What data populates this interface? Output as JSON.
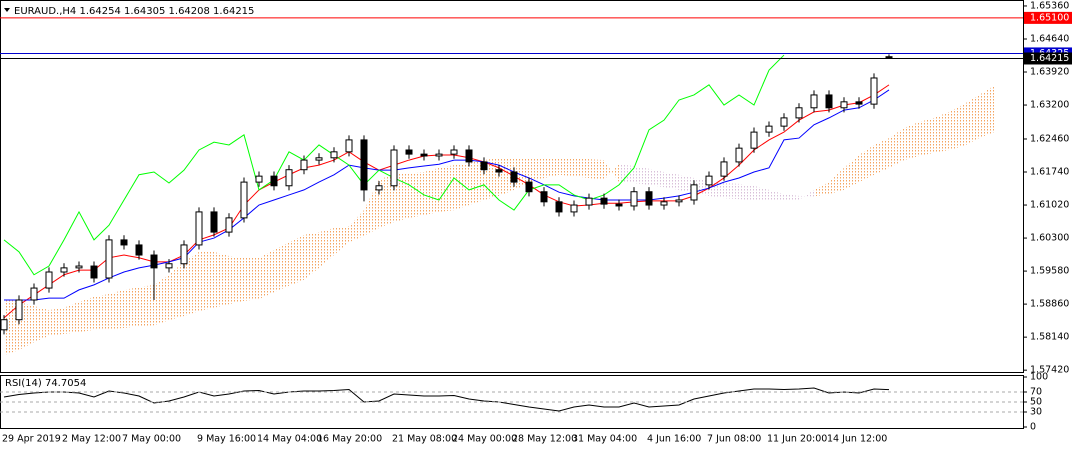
{
  "chart_data": [
    {
      "type": "candlestick",
      "title": "EURAUD.,H4  1.64254 1.64305 1.64208 1.64215",
      "categories": [
        "29 Apr 2019",
        null,
        null,
        null,
        "2 May 12:00",
        null,
        null,
        null,
        "7 May 00:00",
        null,
        null,
        null,
        null,
        "9 May 16:00",
        null,
        null,
        null,
        "14 May 04:00",
        null,
        null,
        null,
        "16 May 20:00",
        null,
        null,
        null,
        null,
        "21 May 08:00",
        null,
        null,
        null,
        "24 May 00:00",
        null,
        null,
        null,
        "28 May 12:00",
        null,
        null,
        null,
        "31 May 04:00",
        null,
        null,
        null,
        null,
        "4 Jun 16:00",
        null,
        null,
        null,
        "7 Jun 08:00",
        null,
        null,
        null,
        "11 Jun 20:00",
        null,
        null,
        null,
        "14 Jun 12:00",
        null,
        null,
        null,
        null,
        null,
        null,
        null,
        null,
        null,
        null,
        null
      ],
      "open": [
        1.583,
        1.5852,
        1.5895,
        1.5921,
        1.5956,
        1.5965,
        1.5969,
        1.5943,
        1.6026,
        1.6015,
        1.5993,
        1.5965,
        1.5974,
        1.6015,
        1.6087,
        1.6043,
        1.6074,
        1.6152,
        1.6165,
        1.6144,
        1.6179,
        1.62,
        1.6205,
        1.6218,
        1.6244,
        1.6135,
        1.6144,
        1.6222,
        1.6213,
        1.6209,
        1.6213,
        1.6222,
        1.6196,
        1.6179,
        1.6174,
        1.6152,
        1.6131,
        1.6109,
        1.6087,
        1.6102,
        1.6117,
        1.6104,
        1.61,
        1.6131,
        1.6102,
        1.6109,
        1.6113,
        1.6146,
        1.6165,
        1.6196,
        1.6226,
        1.6261,
        1.6274,
        1.6292,
        1.6314,
        1.6342,
        1.6314,
        1.6327,
        1.6322,
        1.64254,
        null,
        null,
        null,
        null,
        null,
        null,
        null
      ],
      "high": [
        1.5862,
        1.5905,
        1.5931,
        1.5966,
        1.5975,
        1.5979,
        1.5979,
        1.6036,
        1.6036,
        1.6025,
        1.6003,
        1.5984,
        1.6025,
        1.6097,
        1.6097,
        1.6084,
        1.6162,
        1.6175,
        1.6175,
        1.6189,
        1.621,
        1.6215,
        1.6228,
        1.6254,
        1.6254,
        1.6154,
        1.6232,
        1.6232,
        1.6223,
        1.6223,
        1.6232,
        1.6232,
        1.6206,
        1.6189,
        1.6184,
        1.6162,
        1.6141,
        1.6119,
        1.6112,
        1.6127,
        1.6127,
        1.6114,
        1.6141,
        1.6141,
        1.6119,
        1.6123,
        1.6156,
        1.6175,
        1.6206,
        1.6236,
        1.6271,
        1.6284,
        1.6302,
        1.6324,
        1.6352,
        1.6352,
        1.6337,
        1.6337,
        1.6389,
        1.64305,
        null,
        null,
        null,
        null,
        null,
        null,
        null
      ],
      "low": [
        1.582,
        1.5842,
        1.5885,
        1.5911,
        1.5946,
        1.5955,
        1.5933,
        1.5933,
        1.6005,
        1.5983,
        1.5895,
        1.5955,
        1.5964,
        1.6005,
        1.6033,
        1.6033,
        1.6064,
        1.6142,
        1.6134,
        1.6134,
        1.6169,
        1.619,
        1.6195,
        1.6208,
        1.611,
        1.6125,
        1.6134,
        1.6203,
        1.6199,
        1.6199,
        1.6203,
        1.6186,
        1.6169,
        1.6164,
        1.6142,
        1.6121,
        1.6099,
        1.6077,
        1.6077,
        1.6092,
        1.6094,
        1.609,
        1.609,
        1.6092,
        1.6092,
        1.6099,
        1.6103,
        1.6136,
        1.6155,
        1.6186,
        1.6216,
        1.6251,
        1.6264,
        1.6282,
        1.6304,
        1.6304,
        1.6304,
        1.6312,
        1.6312,
        1.64208,
        null,
        null,
        null,
        null,
        null,
        null,
        null
      ],
      "close": [
        1.5852,
        1.5895,
        1.5921,
        1.5956,
        1.5965,
        1.5969,
        1.5943,
        1.6026,
        1.6015,
        1.5993,
        1.5965,
        1.5974,
        1.6015,
        1.6087,
        1.6043,
        1.6074,
        1.6152,
        1.6165,
        1.6144,
        1.6179,
        1.62,
        1.6205,
        1.6218,
        1.6244,
        1.6135,
        1.6144,
        1.6222,
        1.6213,
        1.6209,
        1.6213,
        1.6222,
        1.6196,
        1.6179,
        1.6174,
        1.6152,
        1.6131,
        1.6109,
        1.6087,
        1.6102,
        1.6117,
        1.6104,
        1.61,
        1.6131,
        1.6102,
        1.6109,
        1.6113,
        1.6146,
        1.6165,
        1.6196,
        1.6226,
        1.6261,
        1.6274,
        1.6292,
        1.6314,
        1.6342,
        1.6314,
        1.6327,
        1.6322,
        1.6379,
        1.64215,
        null,
        null,
        null,
        null,
        null,
        null,
        null
      ],
      "up_color": "#ffffff",
      "down_color": "#000000",
      "wick_color": "#000000",
      "lines": [
        {
          "color": "#ff0000",
          "values": [
            1.5856,
            1.5884,
            1.5906,
            1.5928,
            1.595,
            1.596,
            1.596,
            1.5987,
            1.5993,
            1.5987,
            1.5978,
            1.5978,
            1.5993,
            1.6026,
            1.6037,
            1.6052,
            1.6102,
            1.6135,
            1.6152,
            1.6168,
            1.6183,
            1.6189,
            1.62,
            1.6218,
            1.6196,
            1.6178,
            1.6189,
            1.62,
            1.6209,
            1.6211,
            1.6211,
            1.6205,
            1.6196,
            1.6183,
            1.6165,
            1.6146,
            1.6124,
            1.6109,
            1.61,
            1.6102,
            1.6106,
            1.6106,
            1.6109,
            1.6111,
            1.6111,
            1.6111,
            1.6122,
            1.6139,
            1.6161,
            1.6189,
            1.6222,
            1.6244,
            1.6261,
            1.6287,
            1.6305,
            1.6309,
            1.632,
            1.6325,
            1.6342,
            1.6364,
            null,
            null,
            null,
            null,
            null,
            null,
            null
          ]
        },
        {
          "color": "#0000ff",
          "values": [
            1.5895,
            1.5895,
            1.5895,
            1.5899,
            1.5899,
            1.5917,
            1.5928,
            1.5943,
            1.5956,
            1.5965,
            1.5971,
            1.5978,
            1.5987,
            1.6021,
            1.603,
            1.6048,
            1.6074,
            1.6102,
            1.6113,
            1.6124,
            1.6135,
            1.6152,
            1.6168,
            1.6189,
            1.6183,
            1.6178,
            1.6178,
            1.6183,
            1.6187,
            1.6191,
            1.62,
            1.62,
            1.6196,
            1.6189,
            1.6174,
            1.6161,
            1.6146,
            1.613,
            1.6122,
            1.6117,
            1.6113,
            1.6113,
            1.6113,
            1.6113,
            1.6117,
            1.6122,
            1.613,
            1.6139,
            1.6152,
            1.6161,
            1.6174,
            1.6183,
            1.6244,
            1.6248,
            1.6277,
            1.6292,
            1.6309,
            1.6314,
            1.6331,
            1.6353,
            null,
            null,
            null,
            null,
            null,
            null,
            null
          ]
        },
        {
          "color": "#00ff00",
          "values": [
            1.6026,
            1.6,
            1.595,
            1.5969,
            1.6026,
            1.6087,
            1.6026,
            1.6058,
            1.6113,
            1.6168,
            1.6174,
            1.615,
            1.6178,
            1.6222,
            1.6239,
            1.6233,
            1.6255,
            1.6135,
            1.6157,
            1.6218,
            1.62,
            1.6233,
            1.6211,
            1.6189,
            1.6146,
            1.6178,
            1.6161,
            1.6146,
            1.6124,
            1.6113,
            1.6161,
            1.6135,
            1.6146,
            1.6113,
            1.6091,
            1.6135,
            1.6146,
            1.6146,
            1.6124,
            1.6113,
            1.6124,
            1.6146,
            1.6183,
            1.6266,
            1.6287,
            1.6331,
            1.6342,
            1.6364,
            1.632,
            1.6342,
            1.632,
            1.6396,
            1.6429,
            null,
            null,
            null,
            null,
            null,
            null,
            null,
            null,
            null,
            null,
            null,
            null,
            null,
            null
          ]
        }
      ],
      "cloud": {
        "colors": [
          "#f4a460",
          "#d8bfd8"
        ],
        "span_a": [
          1.5899,
          1.5891,
          1.5882,
          1.5873,
          1.5878,
          1.5891,
          1.5902,
          1.5908,
          1.5917,
          1.5923,
          1.5928,
          1.595,
          1.5978,
          1.6,
          1.6,
          1.5991,
          1.5987,
          1.5987,
          1.6004,
          1.6021,
          1.6037,
          1.6043,
          1.6052,
          1.6056,
          1.6091,
          1.6157,
          1.617,
          1.6172,
          1.6174,
          1.6183,
          1.6189,
          1.6194,
          1.62,
          1.6205,
          1.6205,
          1.6205,
          1.6205,
          1.6205,
          1.6205,
          1.6202,
          1.62,
          1.6152,
          1.615,
          1.6146,
          1.6141,
          1.6135,
          1.6128,
          1.6122,
          1.6117,
          1.6115,
          1.6113,
          1.6113,
          1.6113,
          1.6113,
          1.6135,
          1.6152,
          1.6183,
          1.6211,
          1.6233,
          1.6248,
          1.627,
          1.6283,
          1.6292,
          1.6305,
          1.6322,
          1.6342,
          1.6362
        ],
        "span_b": [
          1.5775,
          1.5786,
          1.5803,
          1.5817,
          1.5821,
          1.5825,
          1.583,
          1.5832,
          1.5834,
          1.5838,
          1.584,
          1.5851,
          1.586,
          1.5871,
          1.5878,
          1.5886,
          1.5893,
          1.5897,
          1.5912,
          1.5926,
          1.5939,
          1.5965,
          1.5993,
          1.6021,
          1.6035,
          1.6052,
          1.6065,
          1.6074,
          1.608,
          1.6087,
          1.6091,
          1.6102,
          1.6113,
          1.6122,
          1.6135,
          1.615,
          1.6161,
          1.6168,
          1.6165,
          1.6161,
          1.6157,
          1.6191,
          1.6187,
          1.6181,
          1.6174,
          1.6168,
          1.6161,
          1.6154,
          1.615,
          1.6148,
          1.6144,
          1.6135,
          1.6126,
          1.6122,
          1.6121,
          1.6126,
          1.6135,
          1.6152,
          1.6168,
          1.6183,
          1.62,
          1.6209,
          1.6216,
          1.6222,
          1.6231,
          1.6248,
          1.6261
        ]
      },
      "hlines": [
        {
          "value": 1.651,
          "label": "1.65100",
          "color": "#ff0000"
        },
        {
          "value": 1.64325,
          "label": "1.64325",
          "color": "#0000cd"
        },
        {
          "value": 1.64215,
          "label": "1.64215",
          "color": "#000000"
        }
      ],
      "ylim": [
        1.5738,
        1.6549
      ],
      "yticks": [
        {
          "value": 1.6536,
          "label": "1.65360"
        },
        {
          "value": 1.6464,
          "label": "1.64640"
        },
        {
          "value": 1.6392,
          "label": "1.63920"
        },
        {
          "value": 1.632,
          "label": "1.63200"
        },
        {
          "value": 1.6246,
          "label": "1.62460"
        },
        {
          "value": 1.6174,
          "label": "1.61740"
        },
        {
          "value": 1.6102,
          "label": "1.61020"
        },
        {
          "value": 1.603,
          "label": "1.60300"
        },
        {
          "value": 1.5958,
          "label": "1.59580"
        },
        {
          "value": 1.5886,
          "label": "1.58860"
        },
        {
          "value": 1.5814,
          "label": "1.58140"
        },
        {
          "value": 1.5742,
          "label": "1.57420"
        }
      ]
    },
    {
      "type": "line",
      "title": "RSI(14) 74.7054",
      "color": "#000000",
      "values": [
        60,
        65,
        68,
        70,
        70,
        68,
        60,
        72,
        68,
        62,
        48,
        52,
        60,
        70,
        62,
        66,
        72,
        73,
        66,
        70,
        72,
        72,
        73,
        75,
        50,
        52,
        66,
        64,
        62,
        62,
        63,
        56,
        52,
        50,
        45,
        40,
        36,
        32,
        40,
        44,
        40,
        40,
        48,
        40,
        42,
        44,
        56,
        62,
        68,
        72,
        76,
        76,
        75,
        76,
        78,
        68,
        70,
        68,
        76,
        74.7054,
        null,
        null,
        null,
        null,
        null,
        null,
        null
      ],
      "ylim": [
        0,
        100
      ],
      "yticks": [
        100,
        70,
        50,
        30,
        0
      ],
      "grid": "dashed"
    }
  ]
}
